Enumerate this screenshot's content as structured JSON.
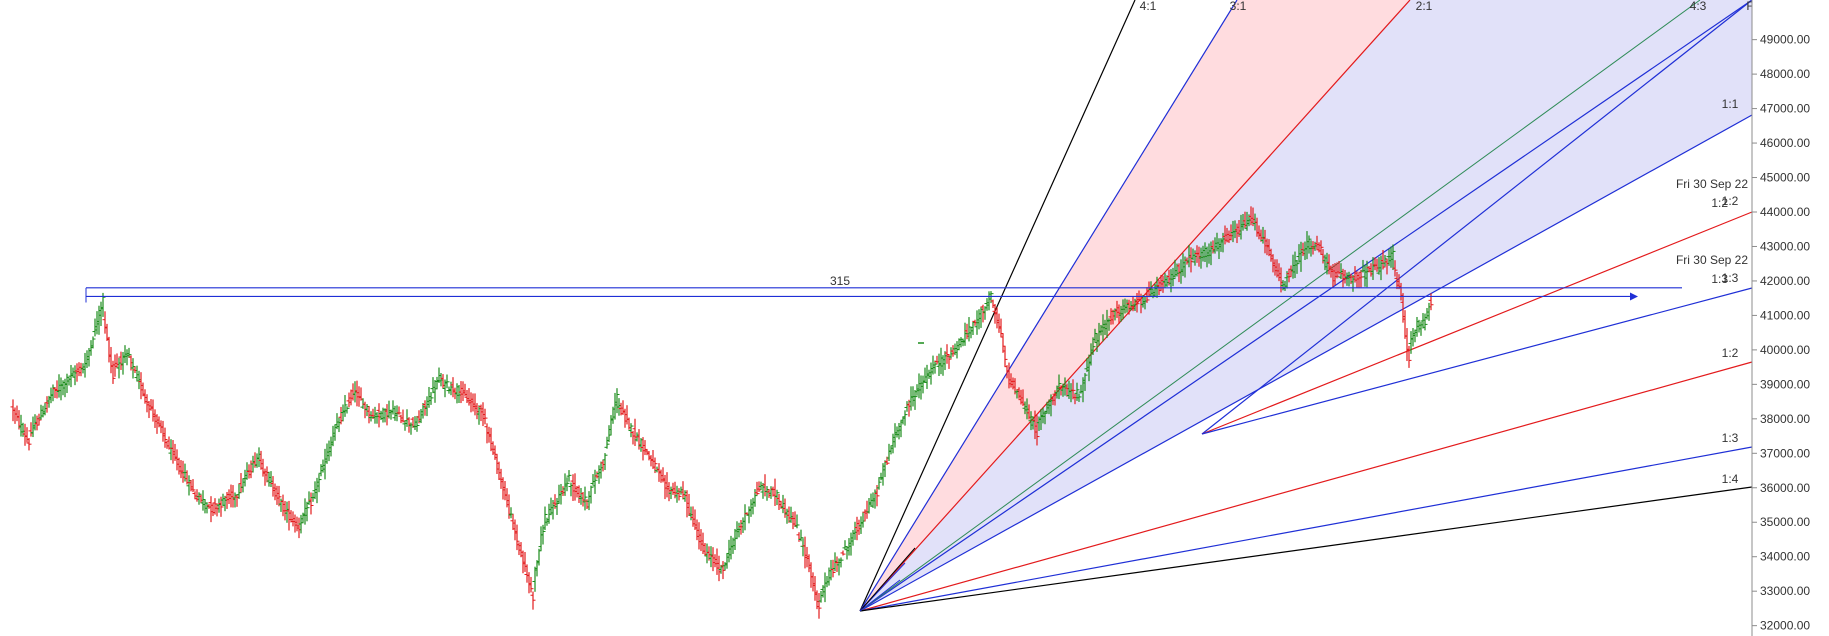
{
  "chart_data": {
    "type": "ohlc",
    "title": "",
    "xlabel": "",
    "ylabel": "",
    "ylim": [
      31700,
      50150
    ],
    "y_ticks": [
      32000,
      33000,
      34000,
      35000,
      36000,
      37000,
      38000,
      39000,
      40000,
      41000,
      42000,
      43000,
      44000,
      45000,
      46000,
      47000,
      48000,
      49000
    ],
    "y_tick_labels": [
      "32000.00",
      "33000.00",
      "34000.00",
      "35000.00",
      "36000.00",
      "37000.00",
      "38000.00",
      "39000.00",
      "40000.00",
      "41000.00",
      "42000.00",
      "43000.00",
      "44000.00",
      "45000.00",
      "46000.00",
      "47000.00",
      "48000.00",
      "49000.00"
    ],
    "grid": false,
    "colors": {
      "up_bar": "#1a8c1a",
      "down_bar": "#e31a1c",
      "fan_blue": "#1f2fd6",
      "fan_red": "#e31a1c",
      "fan_black": "#000000",
      "fan_green": "#2e8b57",
      "shade_red": "#ffd6d9",
      "shade_blue": "#dcdcf8"
    },
    "price_anchors": [
      [
        0,
        38300
      ],
      [
        8,
        37400
      ],
      [
        20,
        38700
      ],
      [
        37,
        39600
      ],
      [
        45,
        41300
      ],
      [
        50,
        39500
      ],
      [
        58,
        39800
      ],
      [
        68,
        38500
      ],
      [
        80,
        37000
      ],
      [
        92,
        35800
      ],
      [
        100,
        35400
      ],
      [
        112,
        35800
      ],
      [
        123,
        36900
      ],
      [
        136,
        35400
      ],
      [
        143,
        34900
      ],
      [
        150,
        35600
      ],
      [
        162,
        37700
      ],
      [
        171,
        38800
      ],
      [
        180,
        38100
      ],
      [
        190,
        38200
      ],
      [
        202,
        37800
      ],
      [
        213,
        39100
      ],
      [
        224,
        38800
      ],
      [
        236,
        38100
      ],
      [
        244,
        36400
      ],
      [
        254,
        34200
      ],
      [
        260,
        33000
      ],
      [
        266,
        34900
      ],
      [
        278,
        36200
      ],
      [
        287,
        35600
      ],
      [
        296,
        36800
      ],
      [
        302,
        38500
      ],
      [
        310,
        37700
      ],
      [
        318,
        37000
      ],
      [
        327,
        36000
      ],
      [
        336,
        35800
      ],
      [
        346,
        34200
      ],
      [
        355,
        33600
      ],
      [
        362,
        34600
      ],
      [
        374,
        36000
      ],
      [
        382,
        35800
      ],
      [
        392,
        34900
      ],
      [
        398,
        33900
      ],
      [
        403,
        32600
      ],
      [
        408,
        33400
      ],
      [
        420,
        34500
      ],
      [
        432,
        35800
      ],
      [
        441,
        37400
      ],
      [
        450,
        38600
      ],
      [
        461,
        39500
      ],
      [
        470,
        39900
      ],
      [
        481,
        40700
      ],
      [
        489,
        41500
      ],
      [
        494,
        40600
      ],
      [
        498,
        39300
      ],
      [
        507,
        38300
      ],
      [
        512,
        37700
      ],
      [
        523,
        38900
      ],
      [
        534,
        38700
      ],
      [
        541,
        40200
      ],
      [
        550,
        41000
      ],
      [
        564,
        41400
      ],
      [
        578,
        42000
      ],
      [
        588,
        42600
      ],
      [
        600,
        42900
      ],
      [
        612,
        43400
      ],
      [
        620,
        43800
      ],
      [
        626,
        43200
      ],
      [
        632,
        42300
      ],
      [
        636,
        41900
      ],
      [
        642,
        42500
      ],
      [
        648,
        43100
      ],
      [
        654,
        42900
      ],
      [
        660,
        42200
      ],
      [
        672,
        42100
      ],
      [
        684,
        42400
      ],
      [
        690,
        42700
      ],
      [
        694,
        41700
      ],
      [
        698,
        40000
      ],
      [
        702,
        40600
      ],
      [
        706,
        40800
      ],
      [
        709,
        41300
      ]
    ],
    "overlay_lines": [
      {
        "label": "315",
        "value": 41800
      },
      {
        "value": 41550
      }
    ],
    "fan_ratio_labels": [
      "4:1",
      "3:1",
      "2:1",
      "4:3",
      "1:1",
      "1:2",
      "1:3",
      "1:2",
      "1:3",
      "1:4"
    ],
    "annotations": [
      {
        "text": "Fri 30 Sep 22",
        "ratio": "1:2"
      },
      {
        "text": "Fri 30 Sep 22",
        "ratio": "1:3"
      }
    ],
    "corner_label": "F"
  }
}
